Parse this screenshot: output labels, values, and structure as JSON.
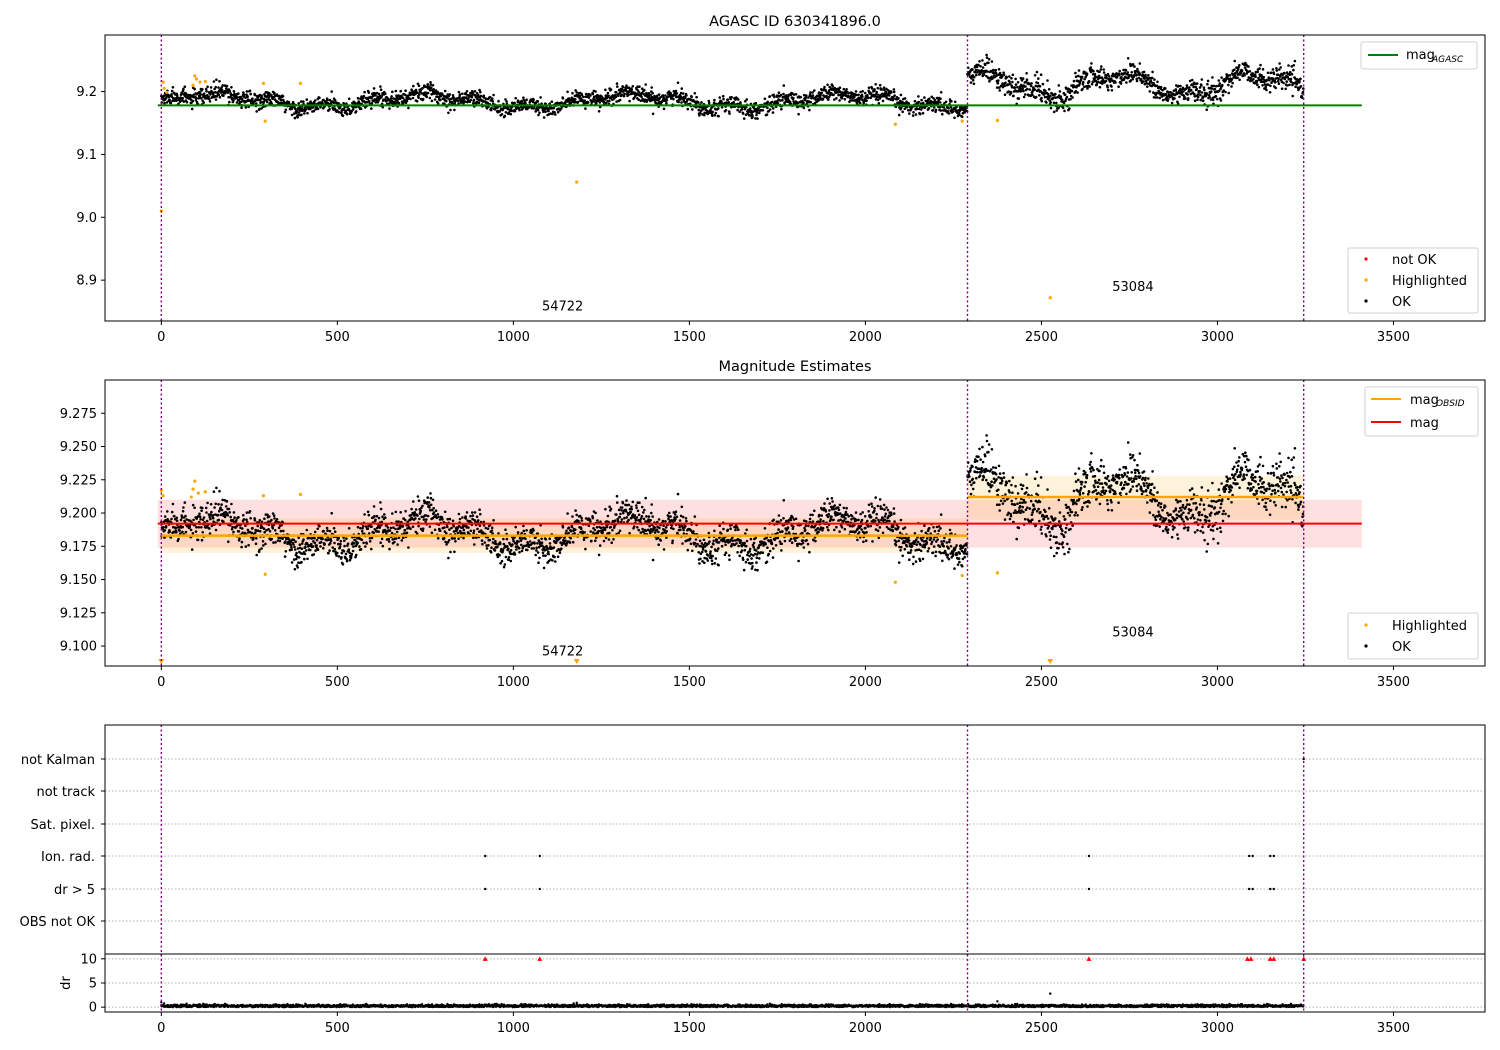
{
  "chart_data": [
    {
      "type": "scatter",
      "title": "AGASC ID 630341896.0",
      "xlim": [
        -160,
        3760
      ],
      "ylim": [
        8.835,
        9.29
      ],
      "xticks": [
        0,
        500,
        1000,
        1500,
        2000,
        2500,
        3000,
        3500
      ],
      "yticks": [
        8.9,
        9.0,
        9.1,
        9.2
      ],
      "vlines": [
        0,
        2290,
        3245
      ],
      "segment_labels": [
        {
          "text": "54722",
          "x": 1140,
          "y": 8.852
        },
        {
          "text": "53084",
          "x": 2760,
          "y": 8.883
        }
      ],
      "reference_lines": [
        {
          "name": "mag_AGASC",
          "y": 9.178,
          "x0": -10,
          "x1": 3410,
          "color": "#008000"
        }
      ],
      "segments": [
        {
          "x0": 0,
          "x1": 2290,
          "mean": 9.185,
          "amp": 0.01,
          "noise": 0.0065,
          "count": 2300
        },
        {
          "x0": 2290,
          "x1": 3245,
          "mean": 9.211,
          "amp": 0.017,
          "noise": 0.009,
          "count": 950
        }
      ],
      "highlighted_points": [
        [
          0,
          9.01
        ],
        [
          5,
          9.215
        ],
        [
          8,
          9.205
        ],
        [
          15,
          9.199
        ],
        [
          90,
          9.21
        ],
        [
          95,
          9.225
        ],
        [
          100,
          9.22
        ],
        [
          110,
          9.215
        ],
        [
          125,
          9.216
        ],
        [
          290,
          9.213
        ],
        [
          295,
          9.153
        ],
        [
          395,
          9.213
        ],
        [
          1180,
          9.056
        ],
        [
          2085,
          9.148
        ],
        [
          2275,
          9.153
        ],
        [
          2375,
          9.154
        ],
        [
          2525,
          8.872
        ]
      ],
      "not_ok_points": [],
      "legend_top": [
        {
          "label": "mag",
          "sub": "AGASC",
          "color": "#008000"
        }
      ],
      "legend_bottom": [
        {
          "label": "not OK",
          "color": "#ff0000"
        },
        {
          "label": "Highlighted",
          "color": "#ffa500"
        },
        {
          "label": "OK",
          "color": "#000000"
        }
      ]
    },
    {
      "type": "scatter",
      "title": "Magnitude Estimates",
      "xlim": [
        -160,
        3760
      ],
      "ylim": [
        9.085,
        9.3
      ],
      "xticks": [
        0,
        500,
        1000,
        1500,
        2000,
        2500,
        3000,
        3500
      ],
      "yticks": [
        9.1,
        9.125,
        9.15,
        9.175,
        9.2,
        9.225,
        9.25,
        9.275
      ],
      "vlines": [
        0,
        2290,
        3245
      ],
      "segment_labels": [
        {
          "text": "54722",
          "x": 1140,
          "y": 9.093
        },
        {
          "text": "53084",
          "x": 2760,
          "y": 9.107
        }
      ],
      "mag_line": {
        "name": "mag",
        "y": 9.192,
        "band": [
          9.174,
          9.21
        ],
        "x0": -10,
        "x1": 3410,
        "color": "#ff0000"
      },
      "obsid_lines": [
        {
          "x0": 0,
          "x1": 2290,
          "y": 9.183,
          "band": [
            9.17,
            9.196
          ]
        },
        {
          "x0": 2290,
          "x1": 3245,
          "y": 9.212,
          "band": [
            9.195,
            9.228
          ]
        }
      ],
      "highlighted_points": [
        [
          0,
          9.217
        ],
        [
          5,
          9.213
        ],
        [
          85,
          9.212
        ],
        [
          90,
          9.218
        ],
        [
          95,
          9.224
        ],
        [
          105,
          9.215
        ],
        [
          125,
          9.216
        ],
        [
          290,
          9.213
        ],
        [
          295,
          9.154
        ],
        [
          395,
          9.214
        ],
        [
          2085,
          9.148
        ],
        [
          2275,
          9.153
        ],
        [
          2375,
          9.155
        ]
      ],
      "highlighted_markers": [
        [
          0,
          9.088
        ],
        [
          1180,
          9.088
        ],
        [
          2525,
          9.088
        ]
      ],
      "legend_top": [
        {
          "label": "mag",
          "sub": "OBSID",
          "color": "#ffa500"
        },
        {
          "label": "mag",
          "sub": "",
          "color": "#ff0000"
        }
      ],
      "legend_bottom": [
        {
          "label": "Highlighted",
          "color": "#ffa500"
        },
        {
          "label": "OK",
          "color": "#000000"
        }
      ]
    },
    {
      "type": "scatter",
      "xlim": [
        -160,
        3760
      ],
      "xticks": [
        0,
        500,
        1000,
        1500,
        2000,
        2500,
        3000,
        3500
      ],
      "vlines": [
        0,
        2290,
        3245
      ],
      "flag_rows": [
        "not Kalman",
        "not track",
        "Sat. pixel.",
        "Ion. rad.",
        "dr > 5",
        "OBS not OK"
      ],
      "flag_points": [
        {
          "row": "Ion. rad.",
          "x": [
            920,
            1075,
            2635,
            3090,
            3100,
            3150,
            3160
          ]
        },
        {
          "row": "dr > 5",
          "x": [
            920,
            1075,
            2635,
            3090,
            3100,
            3150,
            3160
          ]
        },
        {
          "row": "not Kalman",
          "x": [
            3245
          ]
        }
      ],
      "dr": {
        "ylabel": "dr",
        "ylim": [
          -1,
          11
        ],
        "yticks": [
          0,
          5,
          10
        ],
        "clipped_markers_x": [
          920,
          1075,
          2635,
          3085,
          3095,
          3150,
          3160,
          3245
        ],
        "outlier_points": [
          [
            0,
            1.0
          ],
          [
            2525,
            2.8
          ],
          [
            2375,
            1.2
          ],
          [
            1180,
            0.9
          ]
        ]
      }
    }
  ]
}
